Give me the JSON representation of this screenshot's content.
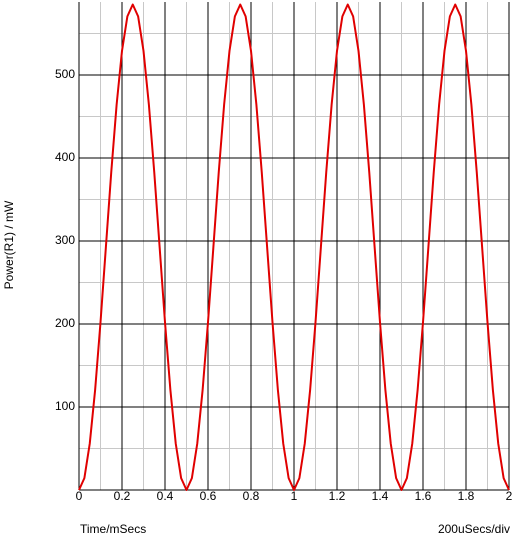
{
  "chart_data": {
    "type": "line",
    "x_label": "Time/mSecs",
    "y_label": "Power(R1) / mW",
    "scale_label": "200uSecs/div",
    "x": [
      0,
      0.025,
      0.05,
      0.075,
      0.1,
      0.125,
      0.15,
      0.175,
      0.2,
      0.225,
      0.25,
      0.275,
      0.3,
      0.325,
      0.35,
      0.375,
      0.4,
      0.425,
      0.45,
      0.475,
      0.5,
      0.525,
      0.55,
      0.575,
      0.6,
      0.625,
      0.65,
      0.675,
      0.7,
      0.725,
      0.75,
      0.775,
      0.8,
      0.825,
      0.85,
      0.875,
      0.9,
      0.925,
      0.95,
      0.975,
      1,
      1.025,
      1.05,
      1.075,
      1.1,
      1.125,
      1.15,
      1.175,
      1.2,
      1.225,
      1.25,
      1.275,
      1.3,
      1.325,
      1.35,
      1.375,
      1.4,
      1.425,
      1.45,
      1.475,
      1.5,
      1.525,
      1.55,
      1.575,
      1.6,
      1.625,
      1.65,
      1.675,
      1.7,
      1.725,
      1.75,
      1.775,
      1.8,
      1.825,
      1.85,
      1.875,
      1.9,
      1.925,
      1.95,
      1.975,
      2
    ],
    "series": [
      {
        "color": "#e00000",
        "values": [
          0,
          14.3,
          55.9,
          120.6,
          202.1,
          292.5,
          382.9,
          464.4,
          529.1,
          570.7,
          585,
          570.7,
          529.1,
          464.4,
          382.9,
          292.5,
          202.1,
          120.6,
          55.9,
          14.3,
          0,
          14.3,
          55.9,
          120.6,
          202.1,
          292.5,
          382.9,
          464.4,
          529.1,
          570.7,
          585,
          570.7,
          529.1,
          464.4,
          382.9,
          292.5,
          202.1,
          120.6,
          55.9,
          14.3,
          0,
          14.3,
          55.9,
          120.6,
          202.1,
          292.5,
          382.9,
          464.4,
          529.1,
          570.7,
          585,
          570.7,
          529.1,
          464.4,
          382.9,
          292.5,
          202.1,
          120.6,
          55.9,
          14.3,
          0,
          14.3,
          55.9,
          120.6,
          202.1,
          292.5,
          382.9,
          464.4,
          529.1,
          570.7,
          585,
          570.7,
          529.1,
          464.4,
          382.9,
          292.5,
          202.1,
          120.6,
          55.9,
          14.3,
          0
        ]
      }
    ],
    "xlim": [
      0,
      2
    ],
    "ylim": [
      0,
      588
    ],
    "xticks": [
      0,
      0.2,
      0.4,
      0.6,
      0.8,
      1,
      1.2,
      1.4,
      1.6,
      1.8,
      2
    ],
    "yticks": [
      100,
      200,
      300,
      400,
      500
    ],
    "minor_xticks": [
      0.1,
      0.3,
      0.5,
      0.7,
      0.9,
      1.1,
      1.3,
      1.5,
      1.7,
      1.9
    ],
    "minor_yticks": [
      50,
      150,
      250,
      350,
      450,
      550
    ],
    "grid": true
  }
}
